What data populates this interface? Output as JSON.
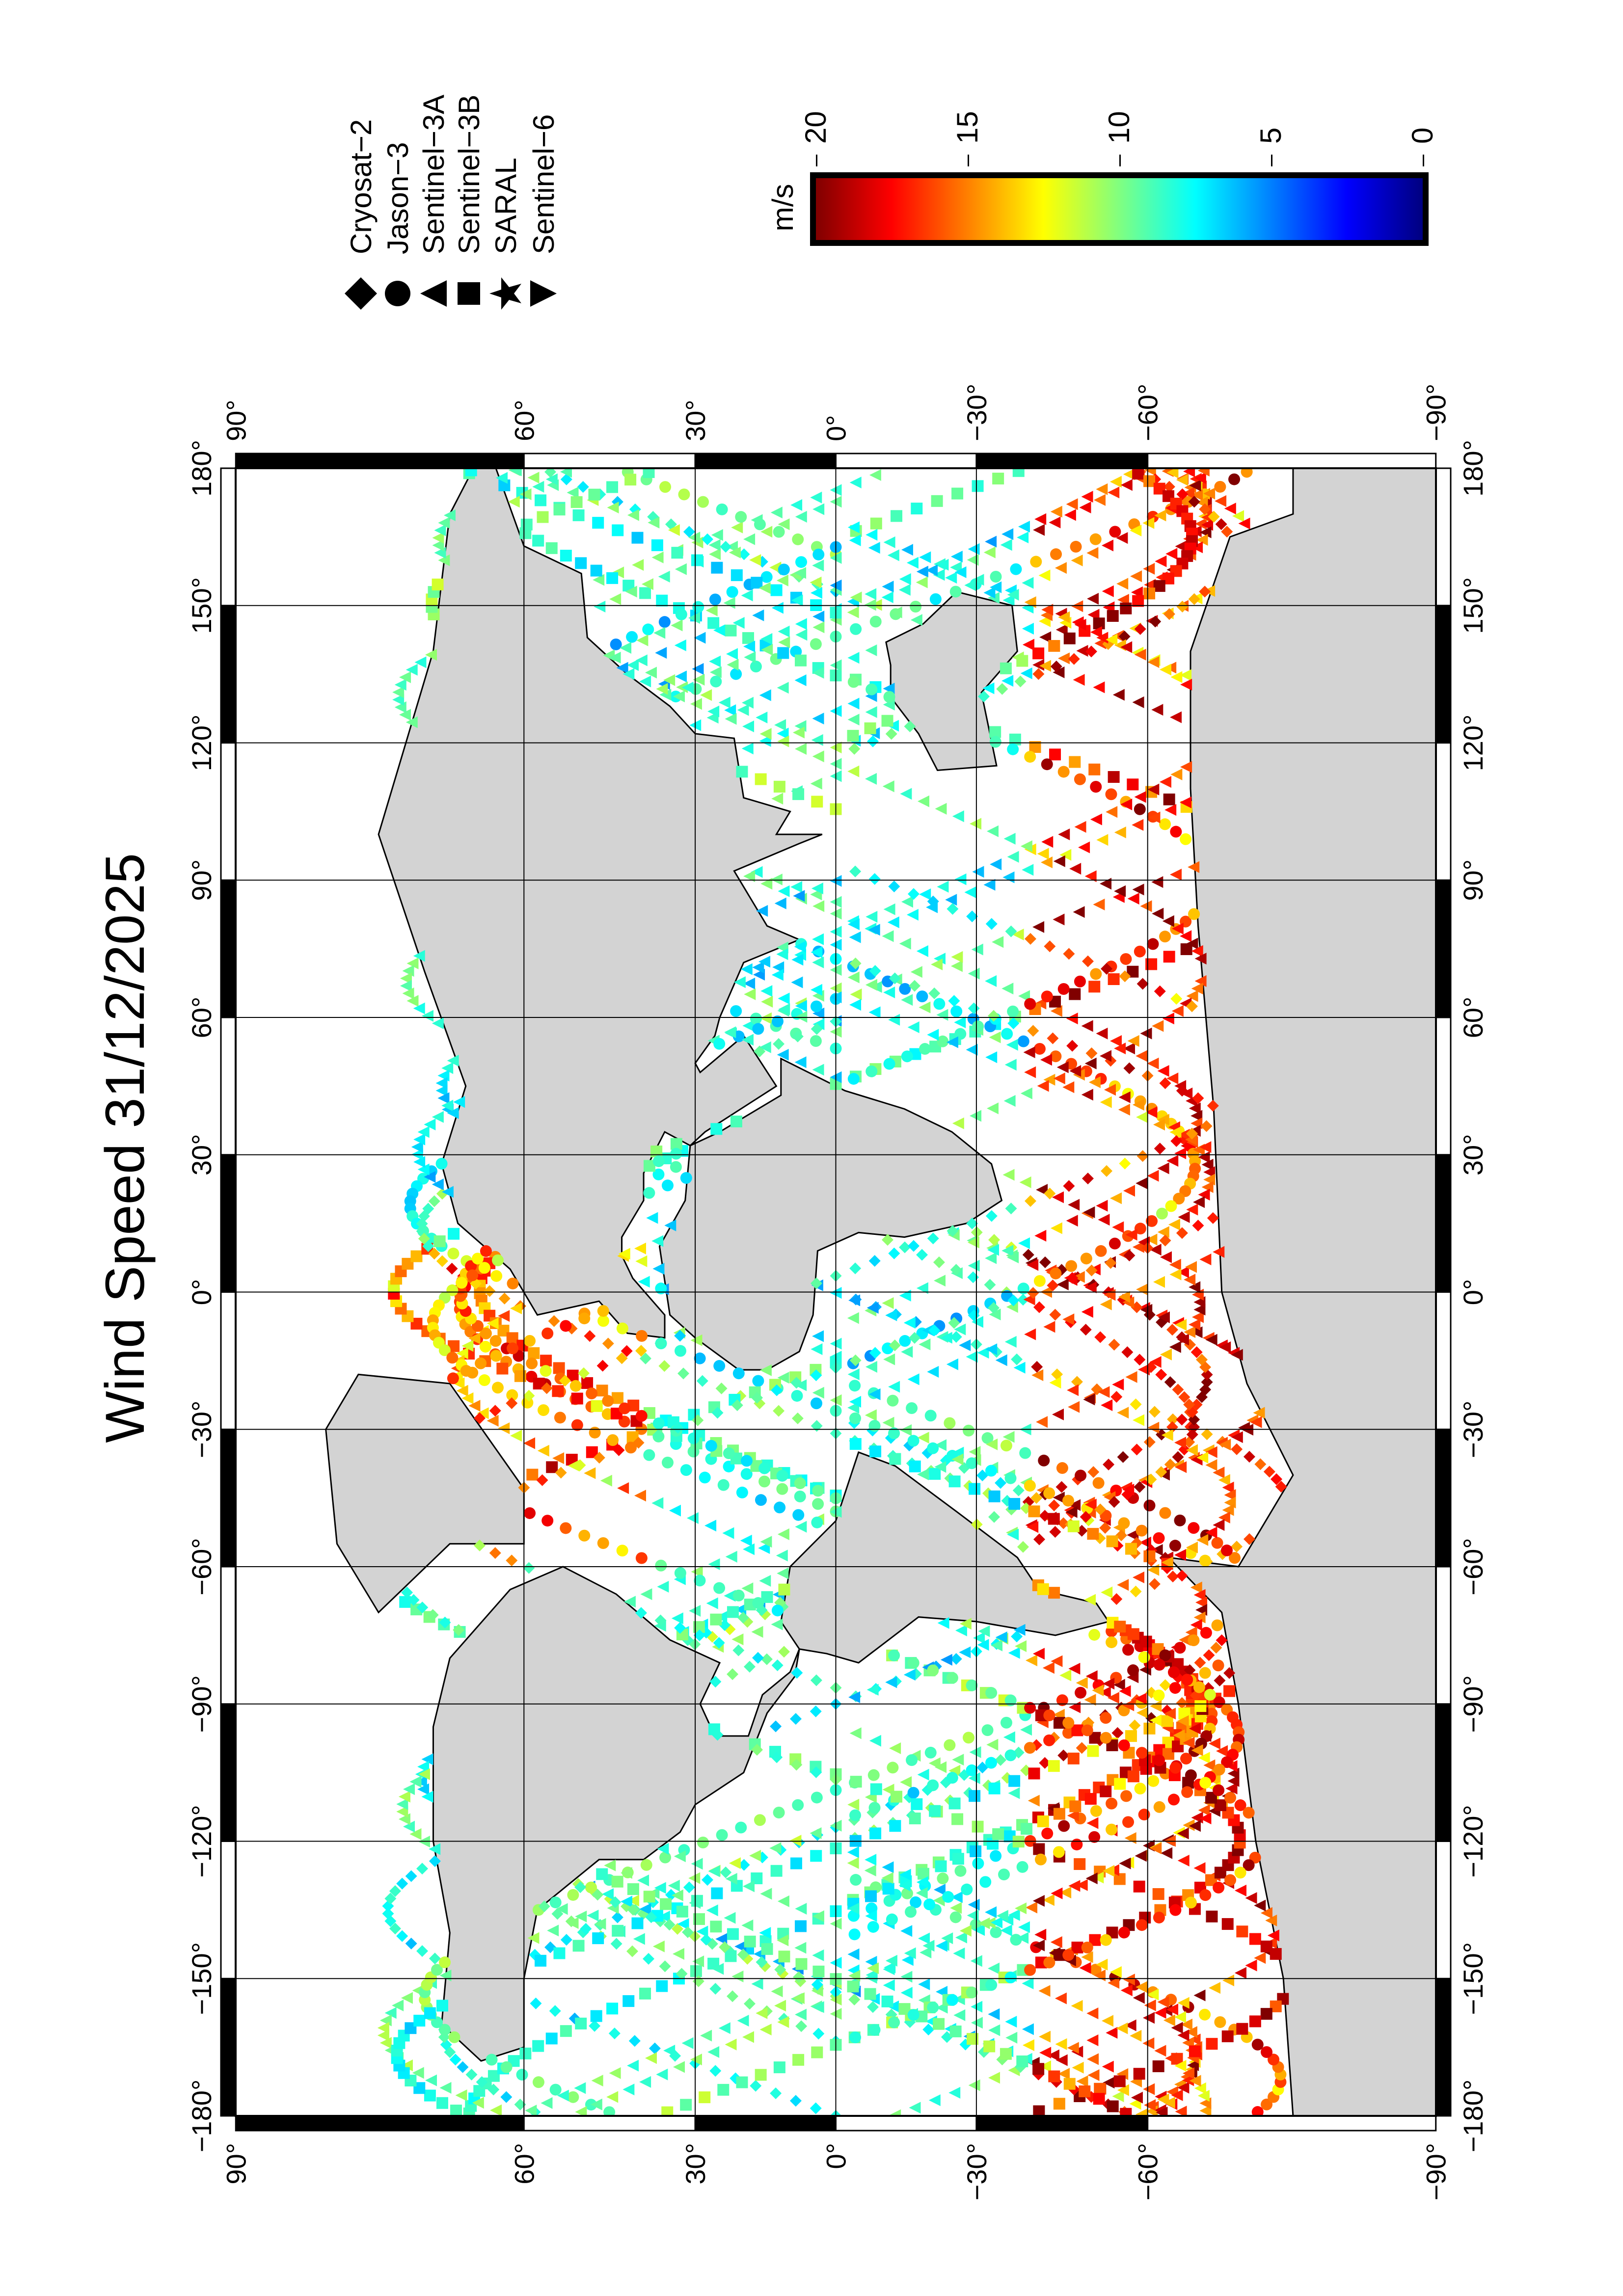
{
  "title": "Wind Speed 31/12/2025",
  "map": {
    "projection": "Miller cylindrical",
    "region": {
      "lon": [
        -180,
        180
      ],
      "lat": [
        -90,
        90
      ]
    },
    "land_color": "#d3d3d3",
    "ocean_color": "#ffffff",
    "gridlines": true,
    "lon_ticks": [
      {
        "value": -180,
        "label": "−180°"
      },
      {
        "value": -150,
        "label": "−150°"
      },
      {
        "value": -120,
        "label": "−120°"
      },
      {
        "value": -90,
        "label": "−90°"
      },
      {
        "value": -60,
        "label": "−60°"
      },
      {
        "value": -30,
        "label": "−30°"
      },
      {
        "value": 0,
        "label": "0°"
      },
      {
        "value": 30,
        "label": "30°"
      },
      {
        "value": 60,
        "label": "60°"
      },
      {
        "value": 90,
        "label": "90°"
      },
      {
        "value": 120,
        "label": "120°"
      },
      {
        "value": 150,
        "label": "150°"
      },
      {
        "value": 180,
        "label": "180°"
      }
    ],
    "lat_ticks": [
      {
        "value": 90,
        "label": "90°"
      },
      {
        "value": 60,
        "label": "60°"
      },
      {
        "value": 30,
        "label": "30°"
      },
      {
        "value": 0,
        "label": "0°"
      },
      {
        "value": -30,
        "label": "−30°"
      },
      {
        "value": -60,
        "label": "−60°"
      },
      {
        "value": -90,
        "label": "−90°"
      }
    ]
  },
  "legend": {
    "items": [
      {
        "symbol": "diamond",
        "label": "Cryosat−2"
      },
      {
        "symbol": "circle",
        "label": "Jason−3"
      },
      {
        "symbol": "triangle-left",
        "label": "Sentinel−3A"
      },
      {
        "symbol": "square",
        "label": "Sentinel−3B"
      },
      {
        "symbol": "star",
        "label": "SARAL"
      },
      {
        "symbol": "triangle-right",
        "label": "Sentinel−6"
      }
    ]
  },
  "colorbar": {
    "unit": "m/s",
    "colormap": "jet",
    "range": [
      0,
      20
    ],
    "ticks": [
      {
        "value": 20,
        "label": "20"
      },
      {
        "value": 15,
        "label": "15"
      },
      {
        "value": 10,
        "label": "10"
      },
      {
        "value": 5,
        "label": "5"
      },
      {
        "value": 0,
        "label": "0"
      }
    ]
  }
}
